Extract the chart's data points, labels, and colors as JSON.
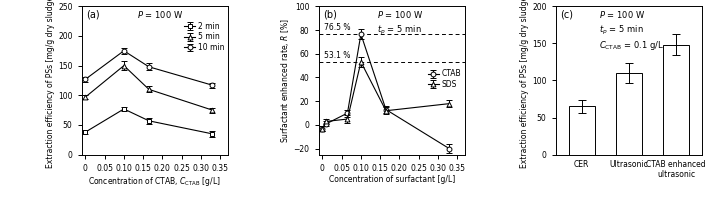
{
  "panel_a": {
    "title": "(a)",
    "annotation": "$P$ = 100 W",
    "xlabel": "Concentration of CTAB, $C_\\mathrm{CTAB}$ [g/L]",
    "ylabel": "Extraction efficiency of PSs [mg/g dry sludge]",
    "ylim": [
      0,
      250
    ],
    "yticks": [
      0,
      50,
      100,
      150,
      200,
      250
    ],
    "xlim": [
      -0.01,
      0.37
    ],
    "xticks": [
      0,
      0.05,
      0.1,
      0.15,
      0.2,
      0.25,
      0.3,
      0.35
    ],
    "xtick_labels": [
      "0",
      "0.05",
      "0.10",
      "0.15",
      "0.20",
      "0.25",
      "0.30",
      "0.35"
    ],
    "series_order": [
      "2min",
      "5min",
      "10min"
    ],
    "series": {
      "2min": {
        "label": "2 min",
        "marker": "s",
        "x": [
          0,
          0.1,
          0.165,
          0.33
        ],
        "y": [
          38,
          77,
          57,
          35
        ],
        "yerr": [
          4,
          4,
          5,
          5
        ]
      },
      "5min": {
        "label": "5 min",
        "marker": "^",
        "x": [
          0,
          0.1,
          0.165,
          0.33
        ],
        "y": [
          97,
          150,
          110,
          75
        ],
        "yerr": [
          4,
          8,
          5,
          4
        ]
      },
      "10min": {
        "label": "10 min",
        "marker": "o",
        "x": [
          0,
          0.1,
          0.165,
          0.33
        ],
        "y": [
          127,
          175,
          148,
          117
        ],
        "yerr": [
          4,
          5,
          6,
          4
        ]
      }
    }
  },
  "panel_b": {
    "title": "(b)",
    "annotation_line1": "$P$ = 100 W",
    "annotation_line2": "$t_p$ = 5 min",
    "xlabel": "Concentration of surfactant [g/L]",
    "ylabel": "Surfactant enhanced rate, $R$ [%]",
    "ylim": [
      -25,
      100
    ],
    "yticks": [
      -20,
      0,
      20,
      40,
      60,
      80,
      100
    ],
    "xlim": [
      -0.01,
      0.37
    ],
    "xticks": [
      0,
      0.05,
      0.1,
      0.15,
      0.2,
      0.25,
      0.3,
      0.35
    ],
    "xtick_labels": [
      "0",
      "0.05",
      "0.10",
      "0.15",
      "0.20",
      "0.25",
      "0.30",
      "0.35"
    ],
    "dashed_lines": [
      {
        "y": 76.5,
        "label": "76.5 %"
      },
      {
        "y": 53.1,
        "label": "53.1 %"
      }
    ],
    "series_order": [
      "CTAB",
      "SDS"
    ],
    "series": {
      "CTAB": {
        "label": "CTAB",
        "marker": "o",
        "x": [
          0,
          0.01,
          0.065,
          0.1,
          0.165,
          0.33
        ],
        "y": [
          -3,
          1,
          10,
          76.5,
          13,
          -20
        ],
        "yerr": [
          2,
          2,
          3,
          4,
          3,
          4
        ]
      },
      "SDS": {
        "label": "SDS",
        "marker": "^",
        "x": [
          0,
          0.01,
          0.065,
          0.1,
          0.165,
          0.33
        ],
        "y": [
          -3,
          3,
          5,
          53.1,
          12,
          18
        ],
        "yerr": [
          2,
          2,
          3,
          4,
          3,
          3
        ]
      }
    }
  },
  "panel_c": {
    "title": "(c)",
    "annotation_line1": "$P$ = 100 W",
    "annotation_line2": "$t_p$ = 5 min",
    "annotation_line3": "$C_\\mathrm{CTAB}$ = 0.1 g/L",
    "xlabel": "",
    "ylabel": "Extraction efficiency of PSs [mg/g dry sludge]",
    "ylim": [
      0,
      200
    ],
    "yticks": [
      0,
      50,
      100,
      150,
      200
    ],
    "categories": [
      "CER",
      "Ultrasonic",
      "CTAB enhanced\nultrasonic"
    ],
    "values": [
      65,
      110,
      148
    ],
    "yerr": [
      9,
      13,
      14
    ],
    "bar_color": "white",
    "bar_edgecolor": "black"
  }
}
